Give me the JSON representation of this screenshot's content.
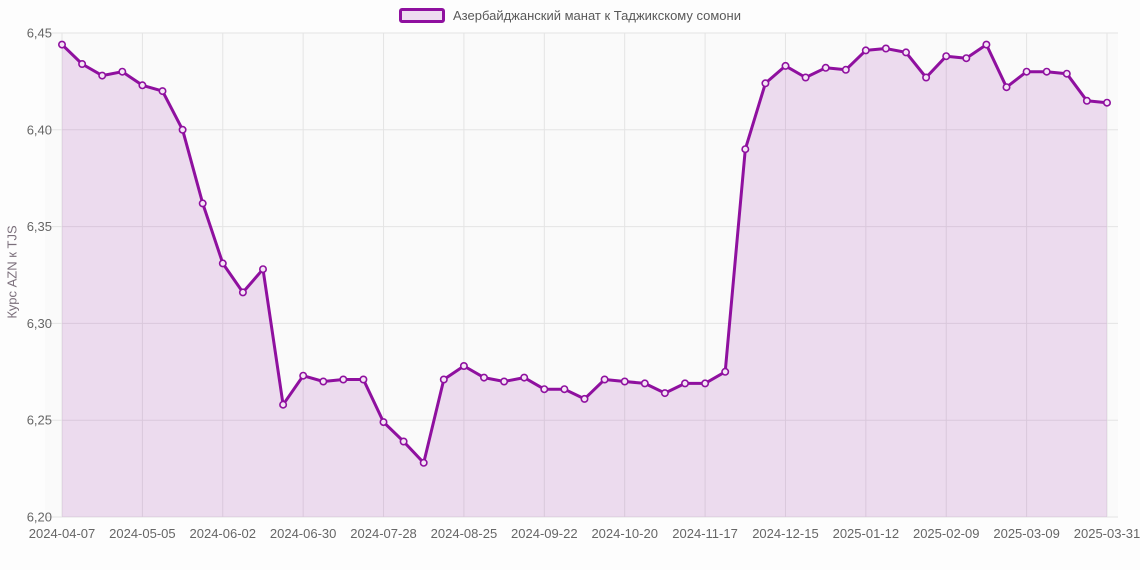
{
  "legend": {
    "label": "Азербайджанский манат к Таджикскому сомони"
  },
  "chart_data": {
    "type": "area",
    "title": "Азербайджанский манат к Таджикскому сомони",
    "xlabel": "",
    "ylabel": "Курс AZN к TJS",
    "ylim": [
      6.2,
      6.45
    ],
    "grid": true,
    "legend_position": "top-center",
    "y_ticks": [
      {
        "value": 6.45,
        "label": "6,45"
      },
      {
        "value": 6.4,
        "label": "6,40"
      },
      {
        "value": 6.35,
        "label": "6,35"
      },
      {
        "value": 6.3,
        "label": "6,30"
      },
      {
        "value": 6.25,
        "label": "6,25"
      },
      {
        "value": 6.2,
        "label": "6,20"
      }
    ],
    "x_tick_indices": [
      0,
      4,
      8,
      12,
      16,
      20,
      24,
      28,
      32,
      36,
      40,
      44,
      48,
      52
    ],
    "x_tick_labels": [
      "2024-04-07",
      "2024-05-05",
      "2024-06-02",
      "2024-06-30",
      "2024-07-28",
      "2024-08-25",
      "2024-09-22",
      "2024-10-20",
      "2024-11-17",
      "2024-12-15",
      "2025-01-12",
      "2025-02-09",
      "2025-03-09",
      "2025-03-31"
    ],
    "x": [
      "2024-04-07",
      "2024-04-14",
      "2024-04-21",
      "2024-04-28",
      "2024-05-05",
      "2024-05-12",
      "2024-05-19",
      "2024-05-26",
      "2024-06-02",
      "2024-06-09",
      "2024-06-16",
      "2024-06-23",
      "2024-06-30",
      "2024-07-07",
      "2024-07-14",
      "2024-07-21",
      "2024-07-28",
      "2024-08-04",
      "2024-08-11",
      "2024-08-18",
      "2024-08-25",
      "2024-09-01",
      "2024-09-08",
      "2024-09-15",
      "2024-09-22",
      "2024-09-29",
      "2024-10-06",
      "2024-10-13",
      "2024-10-20",
      "2024-10-27",
      "2024-11-03",
      "2024-11-10",
      "2024-11-17",
      "2024-11-24",
      "2024-12-01",
      "2024-12-08",
      "2024-12-15",
      "2024-12-22",
      "2024-12-29",
      "2025-01-05",
      "2025-01-12",
      "2025-01-19",
      "2025-01-26",
      "2025-02-02",
      "2025-02-09",
      "2025-02-16",
      "2025-02-23",
      "2025-03-02",
      "2025-03-09",
      "2025-03-16",
      "2025-03-23",
      "2025-03-30",
      "2025-03-31"
    ],
    "values": [
      6.444,
      6.434,
      6.428,
      6.43,
      6.423,
      6.42,
      6.4,
      6.362,
      6.331,
      6.316,
      6.328,
      6.258,
      6.273,
      6.27,
      6.271,
      6.271,
      6.249,
      6.239,
      6.228,
      6.271,
      6.278,
      6.272,
      6.27,
      6.272,
      6.266,
      6.266,
      6.261,
      6.271,
      6.27,
      6.269,
      6.264,
      6.269,
      6.269,
      6.275,
      6.39,
      6.424,
      6.433,
      6.427,
      6.432,
      6.431,
      6.441,
      6.442,
      6.44,
      6.427,
      6.438,
      6.437,
      6.444,
      6.422,
      6.43,
      6.43,
      6.429,
      6.415,
      6.414
    ],
    "colors": {
      "line": "#8f109f",
      "area_fill": "rgba(143, 16, 159, 0.13)",
      "marker_fill": "#f4e6f6",
      "grid": "#e4e4e4",
      "plot_bg": "#fafafa",
      "tick_label": "#666666",
      "axis_title": "#7b6f7b",
      "legend_text": "#595959"
    }
  }
}
